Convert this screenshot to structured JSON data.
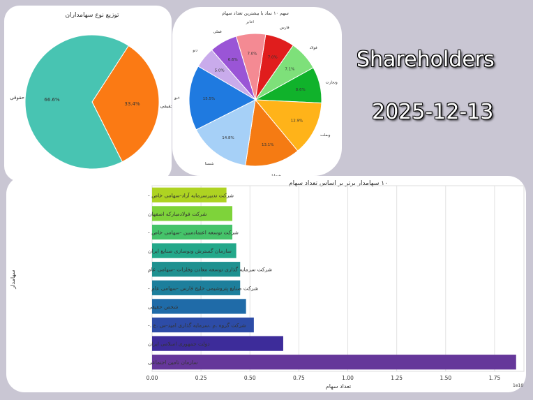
{
  "overlay": {
    "title": "Shareholders",
    "date": "2025-12-13"
  },
  "chart_data": [
    {
      "type": "pie",
      "title": "توزیع نوع سهامداران",
      "slices": [
        {
          "label": "حقیقی",
          "value": 33.4,
          "color": "#fb7a14"
        },
        {
          "label": "حقوقی",
          "value": 66.6,
          "color": "#48c4b2"
        }
      ]
    },
    {
      "type": "pie",
      "title": "سهم ۱۰ نماد با بیشترین تعداد سهام",
      "slices": [
        {
          "label": "فارس",
          "value": 7.0,
          "color": "#e01d1d"
        },
        {
          "label": "فولاد",
          "value": 7.1,
          "color": "#7ee07a"
        },
        {
          "label": "وتجارت",
          "value": 8.6,
          "color": "#10b22b"
        },
        {
          "label": "وبملت",
          "value": 12.9,
          "color": "#ffb319"
        },
        {
          "label": "خساپا",
          "value": 13.1,
          "color": "#f57b13"
        },
        {
          "label": "شستا",
          "value": 14.8,
          "color": "#a6d0f7"
        },
        {
          "label": "خبو",
          "value": 15.5,
          "color": "#1f7ae0"
        },
        {
          "label": "دتو",
          "value": 5.0,
          "color": "#c9abeb"
        },
        {
          "label": "فملی",
          "value": 6.6,
          "color": "#9a55d6"
        },
        {
          "label": "اخابر",
          "value": 7.0,
          "color": "#f48a93"
        }
      ]
    },
    {
      "type": "bar",
      "orientation": "horizontal",
      "title": "۱۰ سهامدار برتر بر اساس تعداد سهام",
      "xlabel": "تعداد سهام",
      "ylabel": "سهامدار",
      "x_scale_note": "1e10",
      "xlim": [
        0,
        1.9
      ],
      "xticks": [
        "0.00",
        "0.25",
        "0.50",
        "0.75",
        "1.00",
        "1.25",
        "1.50",
        "1.75"
      ],
      "grid": true,
      "categories": [
        "شرکت تدبیرسرمایه آراد-سهامی خاص -",
        "شرکت فولادمبارکه اصفهان",
        "شرکت توسعه اعتمادمبین -سهامی خاص -",
        "سازمان گسترش ونوسازی صنایع ایران",
        "شرکت سرمایه گذاری توسعه معادن وفلزات -سهامی عام",
        "شرکت صنایع پتروشیمی خلیج فارس -سهامی عام -",
        "شخص حقیقی",
        "شرکت گروه .م .سرمایه گذاری امید-س .ع .-",
        "دولت جمهوری اسلامی ایران",
        "سازمان تامین اجتماعی"
      ],
      "values": [
        0.38,
        0.41,
        0.41,
        0.43,
        0.45,
        0.45,
        0.48,
        0.52,
        0.67,
        1.86
      ],
      "colors": [
        "#aed322",
        "#7ed33a",
        "#45c36a",
        "#23a88a",
        "#1f9190",
        "#1d7f9c",
        "#1f6ba8",
        "#2d4ca7",
        "#3d2c9a",
        "#65379a"
      ]
    }
  ]
}
